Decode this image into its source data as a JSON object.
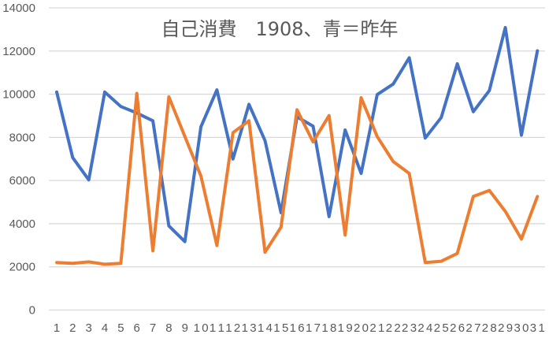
{
  "chart_data": {
    "type": "line",
    "title": "自己消費　1908、青＝昨年",
    "xlabel": "",
    "ylabel": "",
    "categories": [
      "1",
      "2",
      "3",
      "4",
      "5",
      "6",
      "7",
      "8",
      "9",
      "10",
      "11",
      "12",
      "13",
      "14",
      "15",
      "16",
      "17",
      "18",
      "19",
      "20",
      "21",
      "22",
      "23",
      "24",
      "25",
      "26",
      "27",
      "28",
      "29",
      "30",
      "31"
    ],
    "ylim": [
      0,
      14000
    ],
    "yticks": [
      0,
      2000,
      4000,
      6000,
      8000,
      10000,
      12000,
      14000
    ],
    "grid": true,
    "legend": "none",
    "series": [
      {
        "name": "昨年",
        "color": "#4472C4",
        "values": [
          10100,
          7060,
          6030,
          10100,
          9430,
          9130,
          8770,
          3900,
          3170,
          8490,
          10200,
          7000,
          9530,
          7850,
          4510,
          8950,
          8520,
          4330,
          8340,
          6330,
          9980,
          10470,
          11690,
          7970,
          8920,
          11410,
          9190,
          10170,
          13090,
          8100,
          12010
        ]
      },
      {
        "name": "1908",
        "color": "#ED7D31",
        "values": [
          2200,
          2160,
          2230,
          2120,
          2160,
          10040,
          2740,
          9880,
          8040,
          6210,
          2990,
          8220,
          8770,
          2680,
          3840,
          9280,
          7790,
          9010,
          3470,
          9840,
          8040,
          6880,
          6330,
          2200,
          2260,
          2620,
          5260,
          5540,
          4570,
          3290,
          5260
        ]
      }
    ]
  }
}
